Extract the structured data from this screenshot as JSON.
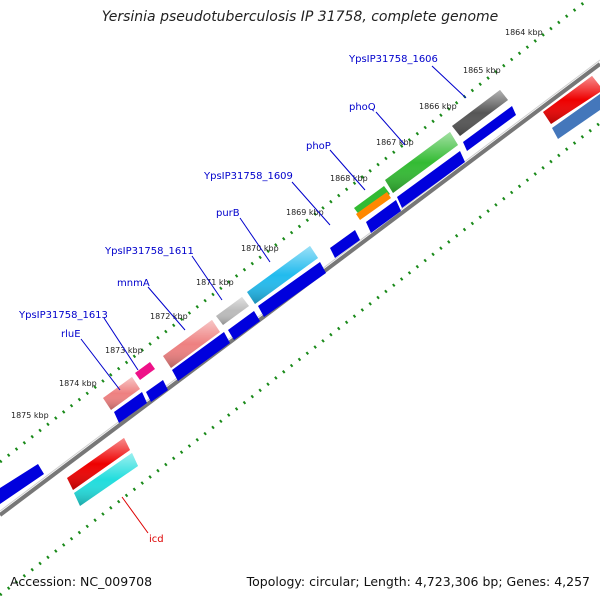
{
  "title": "Yersinia pseudotuberculosis IP 31758, complete genome",
  "footer": {
    "accession": "Accession: NC_009708",
    "summary": "Topology: circular; Length: 4,723,306 bp; Genes: 4,257"
  },
  "kbp_labels": [
    "1864 kbp",
    "1865 kbp",
    "1866 kbp",
    "1867 kbp",
    "1868 kbp",
    "1869 kbp",
    "1870 kbp",
    "1871 kbp",
    "1872 kbp",
    "1873 kbp",
    "1874 kbp",
    "1875 kbp"
  ],
  "gene_labels": [
    {
      "name": "YpsIP31758_1606",
      "color": "#0000cc"
    },
    {
      "name": "phoQ",
      "color": "#0000cc"
    },
    {
      "name": "phoP",
      "color": "#0000cc"
    },
    {
      "name": "YpsIP31758_1609",
      "color": "#0000cc"
    },
    {
      "name": "purB",
      "color": "#0000cc"
    },
    {
      "name": "YpsIP31758_1611",
      "color": "#0000cc"
    },
    {
      "name": "mnmA",
      "color": "#0000cc"
    },
    {
      "name": "YpsIP31758_1613",
      "color": "#0000cc"
    },
    {
      "name": "rluE",
      "color": "#0000cc"
    },
    {
      "name": "icd",
      "color": "#dd0000"
    }
  ],
  "colors": {
    "backbone": "#888888",
    "dots": "#1a8a1a",
    "cds": "#0000dd"
  }
}
